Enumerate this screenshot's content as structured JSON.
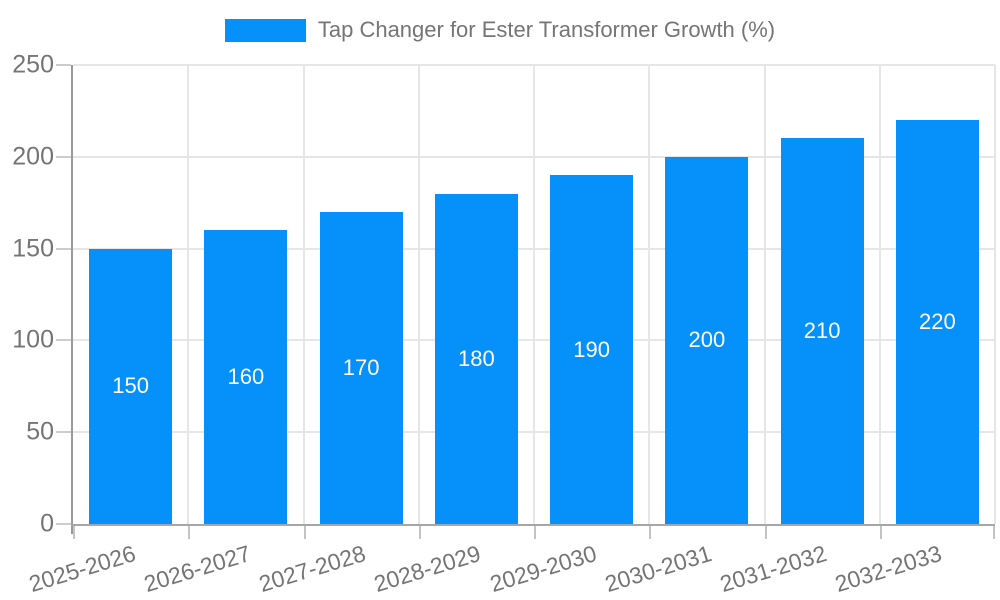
{
  "legend": {
    "label": "Tap Changer for Ester Transformer Growth (%)"
  },
  "chart_data": {
    "type": "bar",
    "title": "Tap Changer for Ester Transformer Growth (%)",
    "categories": [
      "2025-2026",
      "2026-2027",
      "2027-2028",
      "2028-2029",
      "2029-2030",
      "2030-2031",
      "2031-2032",
      "2032-2033"
    ],
    "values": [
      150,
      160,
      170,
      180,
      190,
      200,
      210,
      220
    ],
    "bar_value_labels": [
      "150",
      "160",
      "170",
      "180",
      "190",
      "200",
      "210",
      "220"
    ],
    "xlabel": "",
    "ylabel": "",
    "ylim": [
      0,
      250
    ],
    "yticks": [
      0,
      50,
      100,
      150,
      200,
      250
    ],
    "grid": true,
    "legend_position": "top-center",
    "colors": {
      "bar": "#0590FA",
      "bar_label": "#FFFFFF",
      "axis_text": "#757575",
      "gridline": "#E6E6E6",
      "axis_line": "#9A9A9A",
      "background": "#FFFFFF"
    }
  }
}
